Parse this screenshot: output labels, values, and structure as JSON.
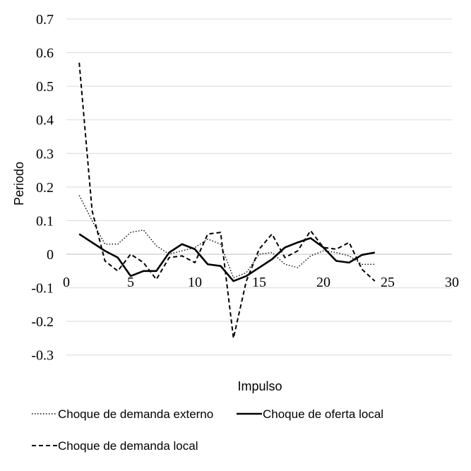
{
  "chart_data": {
    "type": "line",
    "xlabel": "Impulso",
    "ylabel": "Periodo",
    "xlim": [
      0,
      30
    ],
    "ylim": [
      -0.3,
      0.7
    ],
    "xticks": [
      0,
      5,
      10,
      15,
      20,
      25,
      30
    ],
    "yticks": [
      -0.3,
      -0.2,
      -0.1,
      0,
      0.1,
      0.2,
      0.3,
      0.4,
      0.5,
      0.6,
      0.7
    ],
    "ytick_labels": [
      "-0.3",
      "-0.2",
      "-0.1",
      "0",
      "0.1",
      "0.2",
      "0.3",
      "0.4",
      "0.5",
      "0.6",
      "0.7"
    ],
    "grid": "horizontal",
    "legend_position": "bottom",
    "x": [
      1,
      2,
      3,
      4,
      5,
      6,
      7,
      8,
      9,
      10,
      11,
      12,
      13,
      14,
      15,
      16,
      17,
      18,
      19,
      20,
      21,
      22,
      23,
      24
    ],
    "series": [
      {
        "name": "Choque de demanda externo",
        "style": "dotted",
        "values": [
          0.175,
          0.1,
          0.03,
          0.03,
          0.065,
          0.072,
          0.025,
          0.0,
          0.01,
          0.02,
          0.045,
          0.03,
          -0.07,
          -0.055,
          0.0,
          0.005,
          -0.03,
          -0.04,
          -0.005,
          0.01,
          0.005,
          -0.005,
          -0.03,
          -0.03
        ]
      },
      {
        "name": "Choque de oferta local",
        "style": "solid",
        "values": [
          0.06,
          0.035,
          0.01,
          -0.01,
          -0.065,
          -0.05,
          -0.05,
          0.005,
          0.03,
          0.015,
          -0.03,
          -0.035,
          -0.08,
          -0.065,
          -0.04,
          -0.015,
          0.02,
          0.035,
          0.048,
          0.02,
          -0.02,
          -0.025,
          -0.002,
          0.005
        ]
      },
      {
        "name": "Choque de demanda local",
        "style": "dashed",
        "values": [
          0.57,
          0.13,
          -0.02,
          -0.05,
          0.0,
          -0.025,
          -0.075,
          -0.01,
          -0.005,
          -0.025,
          0.06,
          0.065,
          -0.25,
          -0.08,
          0.015,
          0.06,
          -0.01,
          0.01,
          0.07,
          0.02,
          0.015,
          0.035,
          -0.045,
          -0.08
        ]
      }
    ]
  }
}
